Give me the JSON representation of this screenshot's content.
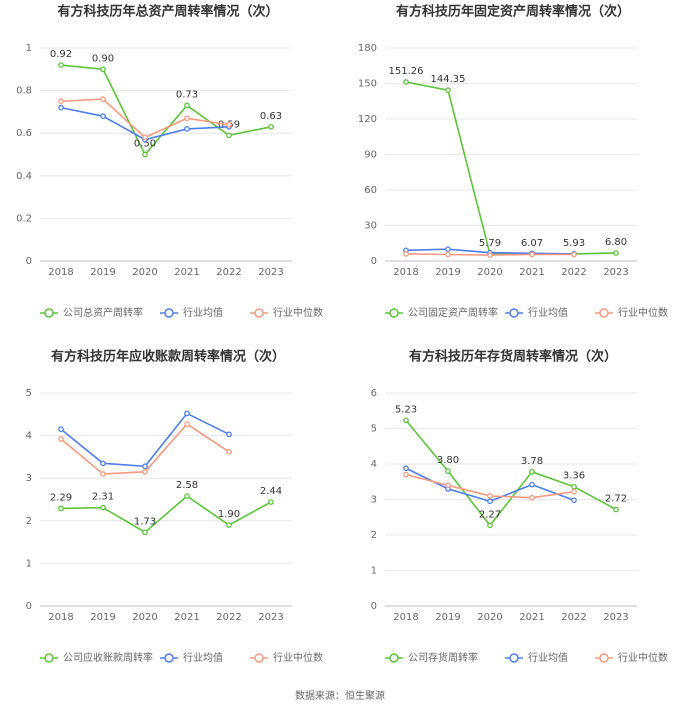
{
  "chart_data": [
    {
      "type": "line",
      "title": "有方科技历年总资产周转率情况（次）",
      "categories": [
        "2018",
        "2019",
        "2020",
        "2021",
        "2022",
        "2023"
      ],
      "ylim": [
        0,
        1
      ],
      "yticks": [
        0,
        0.2,
        0.4,
        0.6,
        0.8,
        1
      ],
      "grid": true,
      "legend": "bottom",
      "series": [
        {
          "name": "公司总资产周转率",
          "color": "#5cc33a",
          "values": [
            0.92,
            0.9,
            0.5,
            0.73,
            0.59,
            0.63
          ],
          "value_labels": [
            "0.92",
            "0.90",
            "0.50",
            "0.73",
            "0.59",
            "0.63"
          ]
        },
        {
          "name": "行业均值",
          "color": "#4e7ee8",
          "values": [
            0.72,
            0.68,
            0.57,
            0.62,
            0.63,
            null
          ]
        },
        {
          "name": "行业中位数",
          "color": "#f59a7e",
          "values": [
            0.75,
            0.76,
            0.58,
            0.67,
            0.64,
            null
          ]
        }
      ]
    },
    {
      "type": "line",
      "title": "有方科技历年固定资产周转率情况（次）",
      "categories": [
        "2018",
        "2019",
        "2020",
        "2021",
        "2022",
        "2023"
      ],
      "ylim": [
        0,
        180
      ],
      "yticks": [
        0,
        30,
        60,
        90,
        120,
        150,
        180
      ],
      "grid": true,
      "legend": "bottom",
      "series": [
        {
          "name": "公司固定资产周转率",
          "color": "#5cc33a",
          "values": [
            151.26,
            144.35,
            5.79,
            6.07,
            5.93,
            6.8
          ],
          "value_labels": [
            "151.26",
            "144.35",
            "5.79",
            "6.07",
            "5.93",
            "6.80"
          ]
        },
        {
          "name": "行业均值",
          "color": "#4e7ee8",
          "values": [
            9,
            10,
            7,
            6.5,
            6,
            null
          ]
        },
        {
          "name": "行业中位数",
          "color": "#f59a7e",
          "values": [
            6,
            5.5,
            5,
            5.5,
            5.5,
            null
          ]
        }
      ]
    },
    {
      "type": "line",
      "title": "有方科技历年应收账款周转率情况（次）",
      "categories": [
        "2018",
        "2019",
        "2020",
        "2021",
        "2022",
        "2023"
      ],
      "ylim": [
        0,
        5
      ],
      "yticks": [
        0,
        1,
        2,
        3,
        4,
        5
      ],
      "grid": true,
      "legend": "bottom",
      "series": [
        {
          "name": "公司应收账款周转率",
          "color": "#5cc33a",
          "values": [
            2.29,
            2.31,
            1.73,
            2.58,
            1.9,
            2.44
          ],
          "value_labels": [
            "2.29",
            "2.31",
            "1.73",
            "2.58",
            "1.90",
            "2.44"
          ]
        },
        {
          "name": "行业均值",
          "color": "#4e7ee8",
          "values": [
            4.15,
            3.35,
            3.28,
            4.52,
            4.03,
            null
          ]
        },
        {
          "name": "行业中位数",
          "color": "#f59a7e",
          "values": [
            3.92,
            3.1,
            3.15,
            4.27,
            3.62,
            null
          ]
        }
      ]
    },
    {
      "type": "line",
      "title": "有方科技历年存货周转率情况（次）",
      "categories": [
        "2018",
        "2019",
        "2020",
        "2021",
        "2022",
        "2023"
      ],
      "ylim": [
        0,
        6
      ],
      "yticks": [
        0,
        1,
        2,
        3,
        4,
        5,
        6
      ],
      "grid": true,
      "legend": "bottom",
      "series": [
        {
          "name": "公司存货周转率",
          "color": "#5cc33a",
          "values": [
            5.23,
            3.8,
            2.27,
            3.78,
            3.36,
            2.72
          ],
          "value_labels": [
            "5.23",
            "3.80",
            "2.27",
            "3.78",
            "3.36",
            "2.72"
          ]
        },
        {
          "name": "行业均值",
          "color": "#4e7ee8",
          "values": [
            3.88,
            3.3,
            2.95,
            3.42,
            2.98,
            null
          ]
        },
        {
          "name": "行业中位数",
          "color": "#f59a7e",
          "values": [
            3.7,
            3.4,
            3.1,
            3.05,
            3.22,
            null
          ]
        }
      ]
    }
  ],
  "source": "数据来源：恒生聚源"
}
